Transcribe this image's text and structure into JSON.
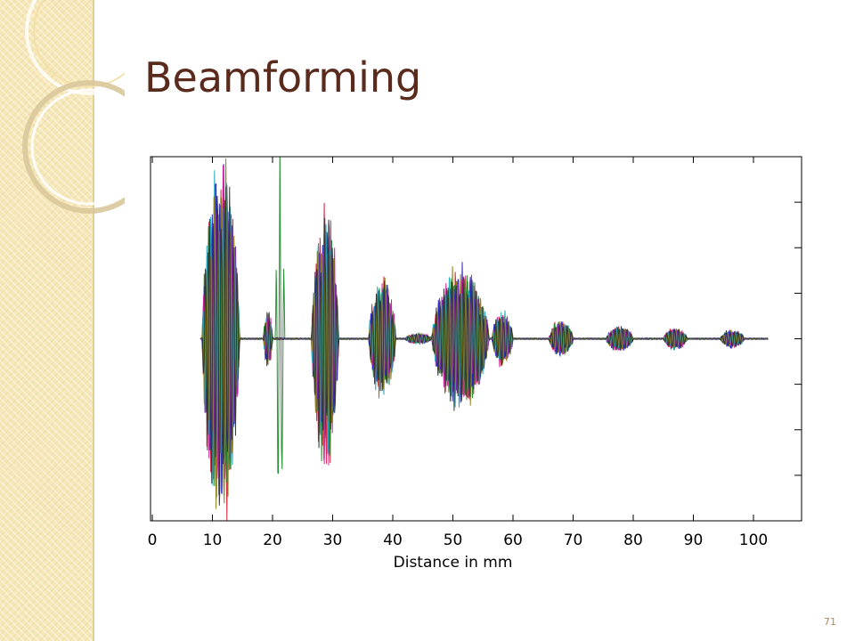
{
  "slide": {
    "title": "Beamforming",
    "number": "71"
  },
  "theme": {
    "accent": "#5a2a1c",
    "band": "#f6e7b8",
    "wave_colors": [
      "#d4203a",
      "#1f8a2a",
      "#2424c8",
      "#c81ea0",
      "#18a8b8",
      "#8a7a14",
      "#333333"
    ]
  },
  "chart_data": {
    "type": "line",
    "title": "",
    "xlabel": "Distance in mm",
    "ylabel": "",
    "xlim": [
      -0.3,
      108
    ],
    "ylim": [
      -1,
      1
    ],
    "x_ticks": [
      "0",
      "10",
      "20",
      "30",
      "40",
      "50",
      "60",
      "70",
      "80",
      "90",
      "100"
    ],
    "grid": false,
    "series_description": "Overlaid multicolored channel waveforms (relative amplitude, no y tick labels)",
    "echo_bursts": [
      {
        "start_mm": 8.3,
        "end_mm": 14.5,
        "amplitude": 1.0
      },
      {
        "start_mm": 18.5,
        "end_mm": 20.0,
        "amplitude": 0.15
      },
      {
        "start_mm": 20.5,
        "end_mm": 22.0,
        "amplitude": 1.0,
        "single_trace": true
      },
      {
        "start_mm": 26.5,
        "end_mm": 31.0,
        "amplitude": 0.72
      },
      {
        "start_mm": 36.0,
        "end_mm": 40.5,
        "amplitude": 0.33
      },
      {
        "start_mm": 42.0,
        "end_mm": 46.5,
        "amplitude": 0.03
      },
      {
        "start_mm": 46.5,
        "end_mm": 56.0,
        "amplitude": 0.38
      },
      {
        "start_mm": 56.5,
        "end_mm": 60.0,
        "amplitude": 0.15
      },
      {
        "start_mm": 66.0,
        "end_mm": 70.0,
        "amplitude": 0.1
      },
      {
        "start_mm": 75.5,
        "end_mm": 80.0,
        "amplitude": 0.07
      },
      {
        "start_mm": 85.0,
        "end_mm": 89.0,
        "amplitude": 0.06
      },
      {
        "start_mm": 94.5,
        "end_mm": 98.5,
        "amplitude": 0.05
      }
    ],
    "trace_end_mm": 102.5
  }
}
